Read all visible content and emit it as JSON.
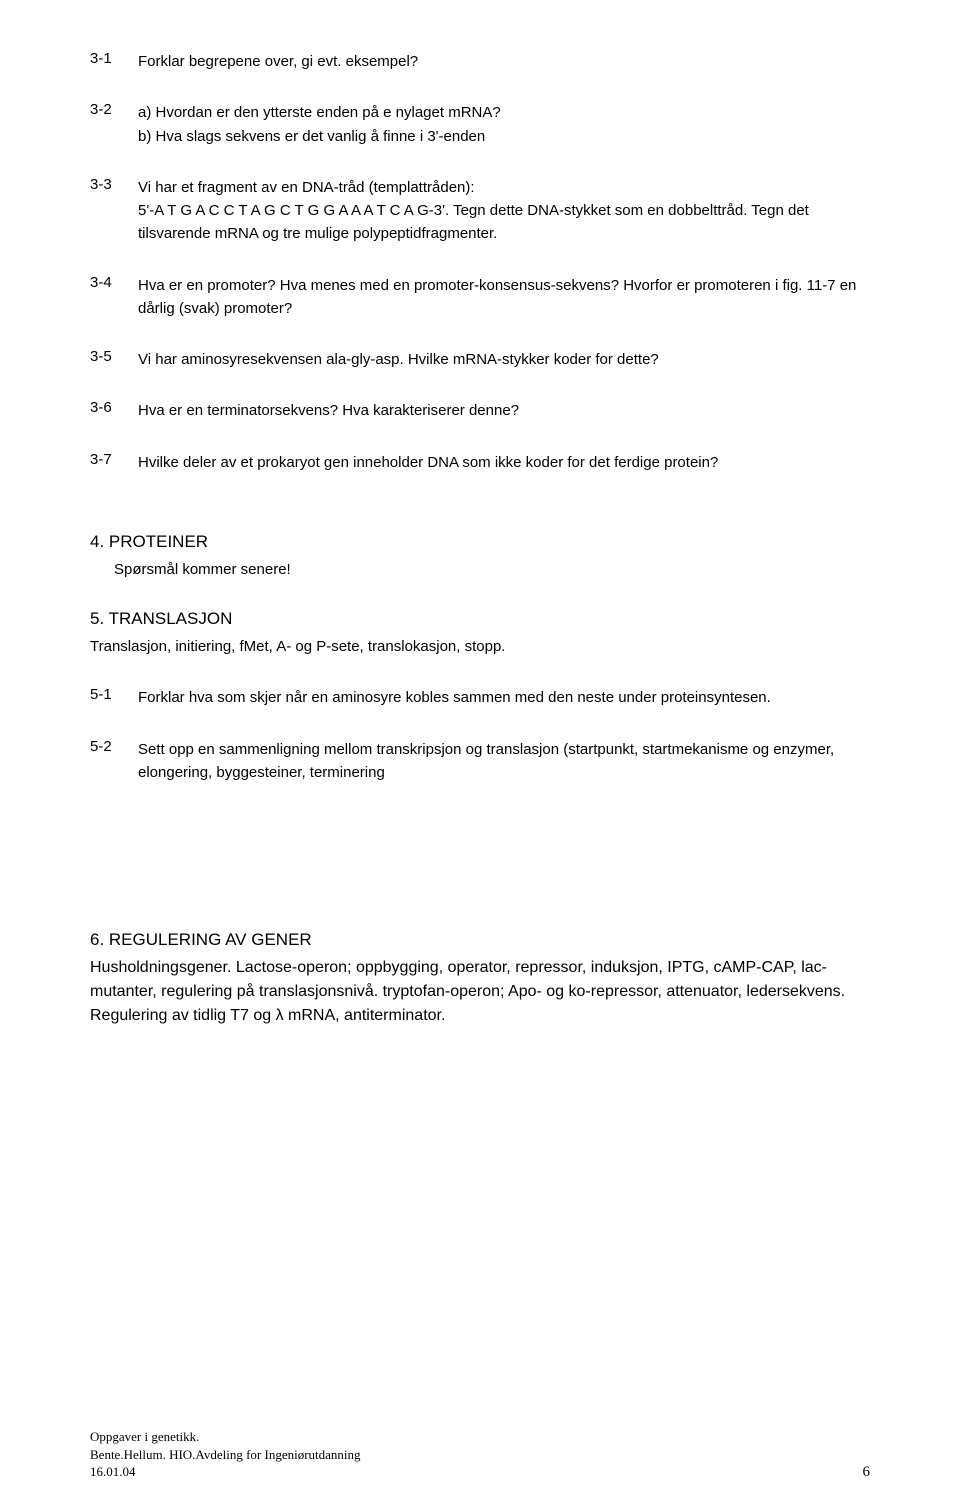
{
  "q31": {
    "num": "3-1",
    "text": "Forklar begrepene over, gi evt. eksempel?"
  },
  "q32": {
    "num": "3-2",
    "text": "a) Hvordan er den ytterste enden på e nylaget mRNA?\nb) Hva slags sekvens er det vanlig å finne i 3'-enden"
  },
  "q33": {
    "num": "3-3",
    "text": "Vi har et fragment av en DNA-tråd (templattråden):\n5'-A T G A C C T A G C T G G A A A T C A G-3'. Tegn dette DNA-stykket som en dobbelttråd. Tegn det tilsvarende mRNA og tre mulige polypeptidfragmenter."
  },
  "q34": {
    "num": "3-4",
    "text": "Hva er en promoter? Hva menes med en promoter-konsensus-sekvens? Hvorfor er promoteren i fig. 11-7 en dårlig (svak) promoter?"
  },
  "q35": {
    "num": "3-5",
    "text": "Vi har aminosyresekvensen ala-gly-asp. Hvilke mRNA-stykker koder for dette?"
  },
  "q36": {
    "num": "3-6",
    "text": "Hva er en terminatorsekvens? Hva karakteriserer denne?"
  },
  "q37": {
    "num": "3-7",
    "text": "Hvilke deler av et prokaryot gen inneholder DNA som ikke koder for det ferdige protein?"
  },
  "section4": {
    "title": "4.  PROTEINER",
    "subtitle": "Spørsmål kommer senere!"
  },
  "section5": {
    "title": "5. TRANSLASJON",
    "subtitle": "Translasjon, initiering, fMet, A- og P-sete, translokasjon, stopp."
  },
  "q51": {
    "num": "5-1",
    "text": "Forklar hva som skjer når en aminosyre kobles sammen med den neste under proteinsyntesen."
  },
  "q52": {
    "num": "5-2",
    "text": "Sett opp en  sammenligning mellom transkripsjon og translasjon (startpunkt, startmekanisme og enzymer, elongering, byggesteiner, terminering"
  },
  "section6": {
    "title": "6. REGULERING AV GENER",
    "body": "Husholdningsgener. Lactose-operon; oppbygging, operator, repressor, induksjon, IPTG, cAMP-CAP, lac-mutanter, regulering på translasjonsnivå. tryptofan-operon; Apo- og ko-repressor, attenuator, ledersekvens. Regulering av tidlig T7 og λ mRNA, antiterminator."
  },
  "footer": {
    "line1": "Oppgaver i genetikk.",
    "line2": "Bente.Hellum. HIO.Avdeling for Ingeniørutdanning",
    "line3": "16.01.04",
    "page": "6"
  }
}
